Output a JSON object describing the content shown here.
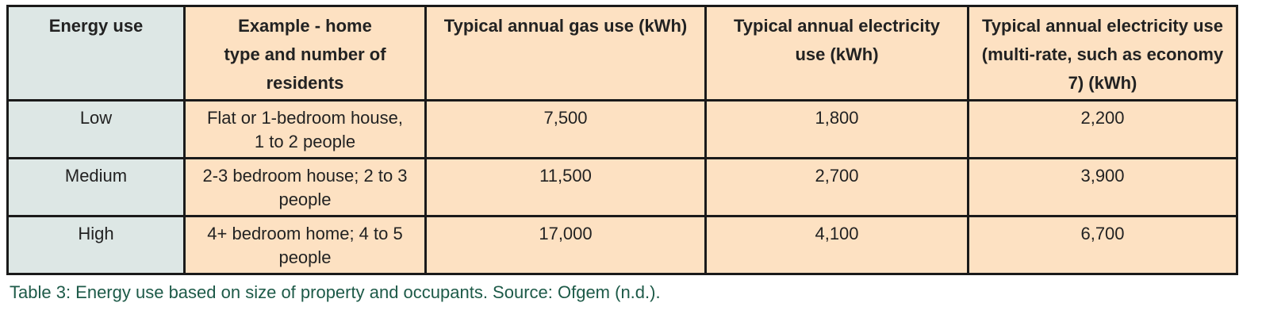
{
  "table": {
    "header": [
      "Energy use",
      "Example - home type and number of residents",
      "Typical annual gas use (kWh)",
      "Typical annual electricity use (kWh)",
      "Typical annual electricity use (multi-rate, such as economy 7) (kWh)"
    ],
    "rows": [
      [
        "Low",
        "Flat or 1-bedroom house, 1 to 2 people",
        "7,500",
        "1,800",
        "2,200"
      ],
      [
        "Medium",
        "2-3 bedroom house; 2 to 3 people",
        "11,500",
        "2,700",
        "3,900"
      ],
      [
        "High",
        "4+ bedroom home; 4 to 5 people",
        "17,000",
        "4,100",
        "6,700"
      ]
    ]
  },
  "caption": "Table 3: Energy use based on size of property and occupants. Source: Ofgem (n.d.)."
}
